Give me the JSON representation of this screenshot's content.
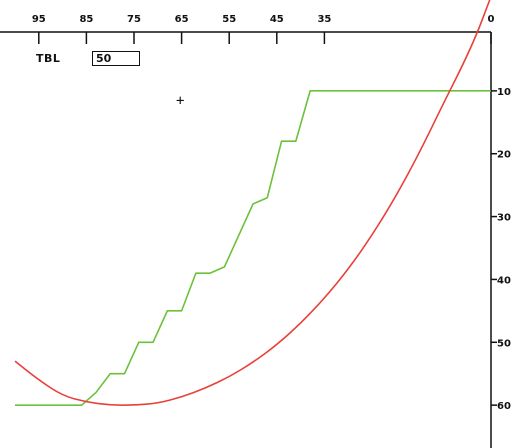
{
  "tbl": {
    "label": "TBL",
    "value": "50"
  },
  "cursor": {
    "glyph": "+"
  },
  "colors": {
    "axis": "#111111",
    "green_series": "#6bc23a",
    "red_series": "#e8403a"
  },
  "chart_data": {
    "type": "line",
    "x_axis": {
      "position": "top",
      "direction": "reversed",
      "range": [
        100,
        0
      ],
      "ticks": [
        95,
        85,
        75,
        65,
        55,
        45,
        35,
        0
      ],
      "tick_labels": [
        "95",
        "85",
        "75",
        "65",
        "55",
        "45",
        "35",
        "0"
      ]
    },
    "y_axis": {
      "position": "right",
      "direction": "down",
      "range": [
        0,
        70
      ],
      "ticks": [
        10,
        20,
        30,
        40,
        50,
        60
      ],
      "tick_labels": [
        "10",
        "20",
        "30",
        "40",
        "50",
        "60"
      ]
    },
    "grid": false,
    "series": [
      {
        "color": "#6bc23a",
        "x": [
          100,
          89,
          86,
          83,
          80,
          77,
          74,
          71,
          68,
          65,
          62,
          59,
          56,
          53,
          50,
          47,
          44,
          41,
          38,
          35,
          32,
          29,
          26,
          23,
          20,
          17,
          14,
          11,
          8,
          4,
          2,
          0
        ],
        "y": [
          60,
          60,
          60,
          58,
          55,
          55,
          50,
          50,
          45,
          45,
          39,
          39,
          38,
          33,
          28,
          27,
          18,
          18,
          10,
          10,
          10,
          10,
          10,
          10,
          10,
          10,
          10,
          10,
          10,
          10,
          10,
          10
        ]
      },
      {
        "color": "#e8403a",
        "shape": "arc",
        "x": [
          100,
          95,
          90,
          85,
          80,
          75,
          70,
          65,
          60,
          55,
          50,
          45,
          40,
          35,
          30,
          25,
          20,
          15,
          10,
          6,
          3,
          1,
          0
        ],
        "y": [
          53,
          56,
          58.5,
          59.5,
          60,
          60,
          59.7,
          58.7,
          57.3,
          55.5,
          53.2,
          50.4,
          47,
          43,
          38.4,
          33,
          26.8,
          19.8,
          12,
          6,
          1,
          -3,
          -5
        ]
      }
    ]
  }
}
